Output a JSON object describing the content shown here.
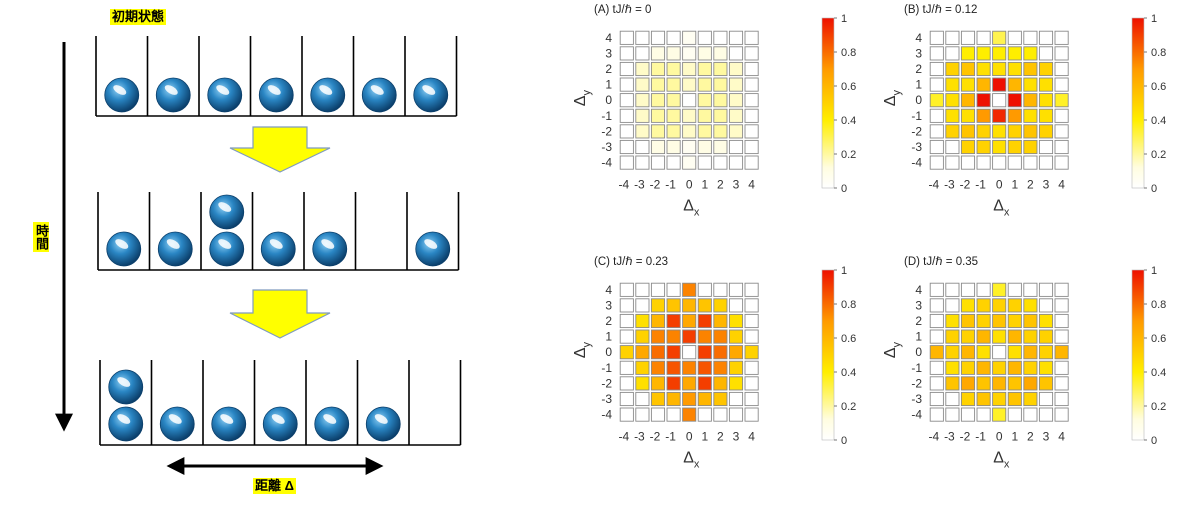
{
  "diagram": {
    "initial_state_label": "初期状態",
    "time_label": "時間",
    "distance_label": "距離 Δ",
    "rows": [
      {
        "name": "initial",
        "bottom": [
          1,
          1,
          1,
          1,
          1,
          1,
          1
        ],
        "top": [
          0,
          0,
          0,
          0,
          0,
          0,
          0
        ]
      },
      {
        "name": "middle",
        "bottom": [
          1,
          1,
          1,
          1,
          1,
          0,
          1
        ],
        "top": [
          0,
          0,
          1,
          0,
          0,
          0,
          0
        ]
      },
      {
        "name": "final",
        "bottom": [
          1,
          1,
          1,
          1,
          1,
          1,
          0
        ],
        "top": [
          1,
          0,
          0,
          0,
          0,
          0,
          0
        ]
      }
    ],
    "colors": {
      "ball": "#1a6ea8",
      "arrow_fill": "#ffff00",
      "arrow_stroke": "#7f9bbf"
    }
  },
  "heatmaps": {
    "x_label": "Δ",
    "x_sub": "x",
    "y_label": "Δ",
    "y_sub": "y",
    "ticks": [
      "-4",
      "-3",
      "-2",
      "-1",
      "0",
      "1",
      "2",
      "3",
      "4"
    ],
    "colorbar_ticks": [
      "0",
      "0.2",
      "0.4",
      "0.6",
      "0.8",
      "1"
    ],
    "panels": [
      {
        "label": "(A) tJ/ℏ = 0",
        "grid": [
          [
            0,
            0,
            0,
            0,
            0.05,
            0,
            0,
            0,
            0
          ],
          [
            0,
            0,
            0.1,
            0.1,
            0.05,
            0.1,
            0.1,
            0,
            0
          ],
          [
            0,
            0.15,
            0.2,
            0.2,
            0.15,
            0.2,
            0.2,
            0.15,
            0
          ],
          [
            0,
            0.15,
            0.2,
            0.2,
            0.15,
            0.2,
            0.2,
            0.15,
            0
          ],
          [
            0,
            0.15,
            0.2,
            0.2,
            0,
            0.2,
            0.2,
            0.15,
            0
          ],
          [
            0,
            0.15,
            0.2,
            0.2,
            0.15,
            0.2,
            0.2,
            0.15,
            0
          ],
          [
            0,
            0.15,
            0.2,
            0.2,
            0.15,
            0.2,
            0.2,
            0.15,
            0
          ],
          [
            0,
            0,
            0.1,
            0.1,
            0.05,
            0.1,
            0.1,
            0,
            0
          ],
          [
            0,
            0,
            0,
            0,
            0.05,
            0,
            0,
            0,
            0
          ]
        ]
      },
      {
        "label": "(B) tJ/ℏ = 0.12",
        "grid": [
          [
            0,
            0,
            0,
            0,
            0.3,
            0,
            0,
            0,
            0
          ],
          [
            0,
            0,
            0.4,
            0.4,
            0.4,
            0.4,
            0.4,
            0,
            0
          ],
          [
            0,
            0.5,
            0.55,
            0.45,
            0.45,
            0.45,
            0.55,
            0.5,
            0
          ],
          [
            0,
            0.45,
            0.45,
            0.6,
            1.0,
            0.6,
            0.45,
            0.45,
            0
          ],
          [
            0.35,
            0.45,
            0.6,
            1.0,
            0,
            1.0,
            0.6,
            0.45,
            0.35
          ],
          [
            0,
            0.45,
            0.45,
            0.7,
            0.95,
            0.7,
            0.45,
            0.45,
            0
          ],
          [
            0,
            0.5,
            0.55,
            0.5,
            0.45,
            0.5,
            0.55,
            0.5,
            0
          ],
          [
            0,
            0,
            0.5,
            0.5,
            0.45,
            0.5,
            0.5,
            0,
            0
          ],
          [
            0,
            0,
            0,
            0,
            0,
            0,
            0,
            0,
            0
          ]
        ]
      },
      {
        "label": "(C) tJ/ℏ = 0.23",
        "grid": [
          [
            0,
            0,
            0,
            0,
            0.75,
            0,
            0,
            0,
            0
          ],
          [
            0,
            0,
            0.5,
            0.55,
            0.6,
            0.55,
            0.5,
            0,
            0
          ],
          [
            0,
            0.45,
            0.6,
            0.9,
            0.65,
            0.9,
            0.6,
            0.45,
            0
          ],
          [
            0,
            0.5,
            0.75,
            0.75,
            0.9,
            0.75,
            0.75,
            0.5,
            0
          ],
          [
            0.5,
            0.65,
            0.8,
            0.9,
            0,
            0.9,
            0.8,
            0.65,
            0.5
          ],
          [
            0,
            0.5,
            0.75,
            0.85,
            0.75,
            0.85,
            0.75,
            0.5,
            0
          ],
          [
            0,
            0.45,
            0.6,
            0.9,
            0.65,
            0.9,
            0.6,
            0.45,
            0
          ],
          [
            0,
            0,
            0.55,
            0.6,
            0.7,
            0.6,
            0.55,
            0,
            0
          ],
          [
            0,
            0,
            0,
            0,
            0.75,
            0,
            0,
            0,
            0
          ]
        ]
      },
      {
        "label": "(D) tJ/ℏ = 0.35",
        "grid": [
          [
            0,
            0,
            0,
            0,
            0.35,
            0,
            0,
            0,
            0
          ],
          [
            0,
            0,
            0.45,
            0.5,
            0.5,
            0.5,
            0.45,
            0,
            0
          ],
          [
            0,
            0.45,
            0.55,
            0.5,
            0.55,
            0.5,
            0.55,
            0.45,
            0
          ],
          [
            0,
            0.5,
            0.5,
            0.6,
            0.45,
            0.6,
            0.5,
            0.5,
            0
          ],
          [
            0.6,
            0.5,
            0.6,
            0.45,
            0,
            0.45,
            0.6,
            0.5,
            0.6
          ],
          [
            0,
            0.45,
            0.5,
            0.6,
            0.5,
            0.6,
            0.5,
            0.45,
            0
          ],
          [
            0,
            0.55,
            0.65,
            0.55,
            0.6,
            0.55,
            0.65,
            0.55,
            0
          ],
          [
            0,
            0,
            0.5,
            0.55,
            0.5,
            0.55,
            0.5,
            0,
            0
          ],
          [
            0,
            0,
            0,
            0,
            0.35,
            0,
            0,
            0,
            0
          ]
        ]
      }
    ]
  }
}
